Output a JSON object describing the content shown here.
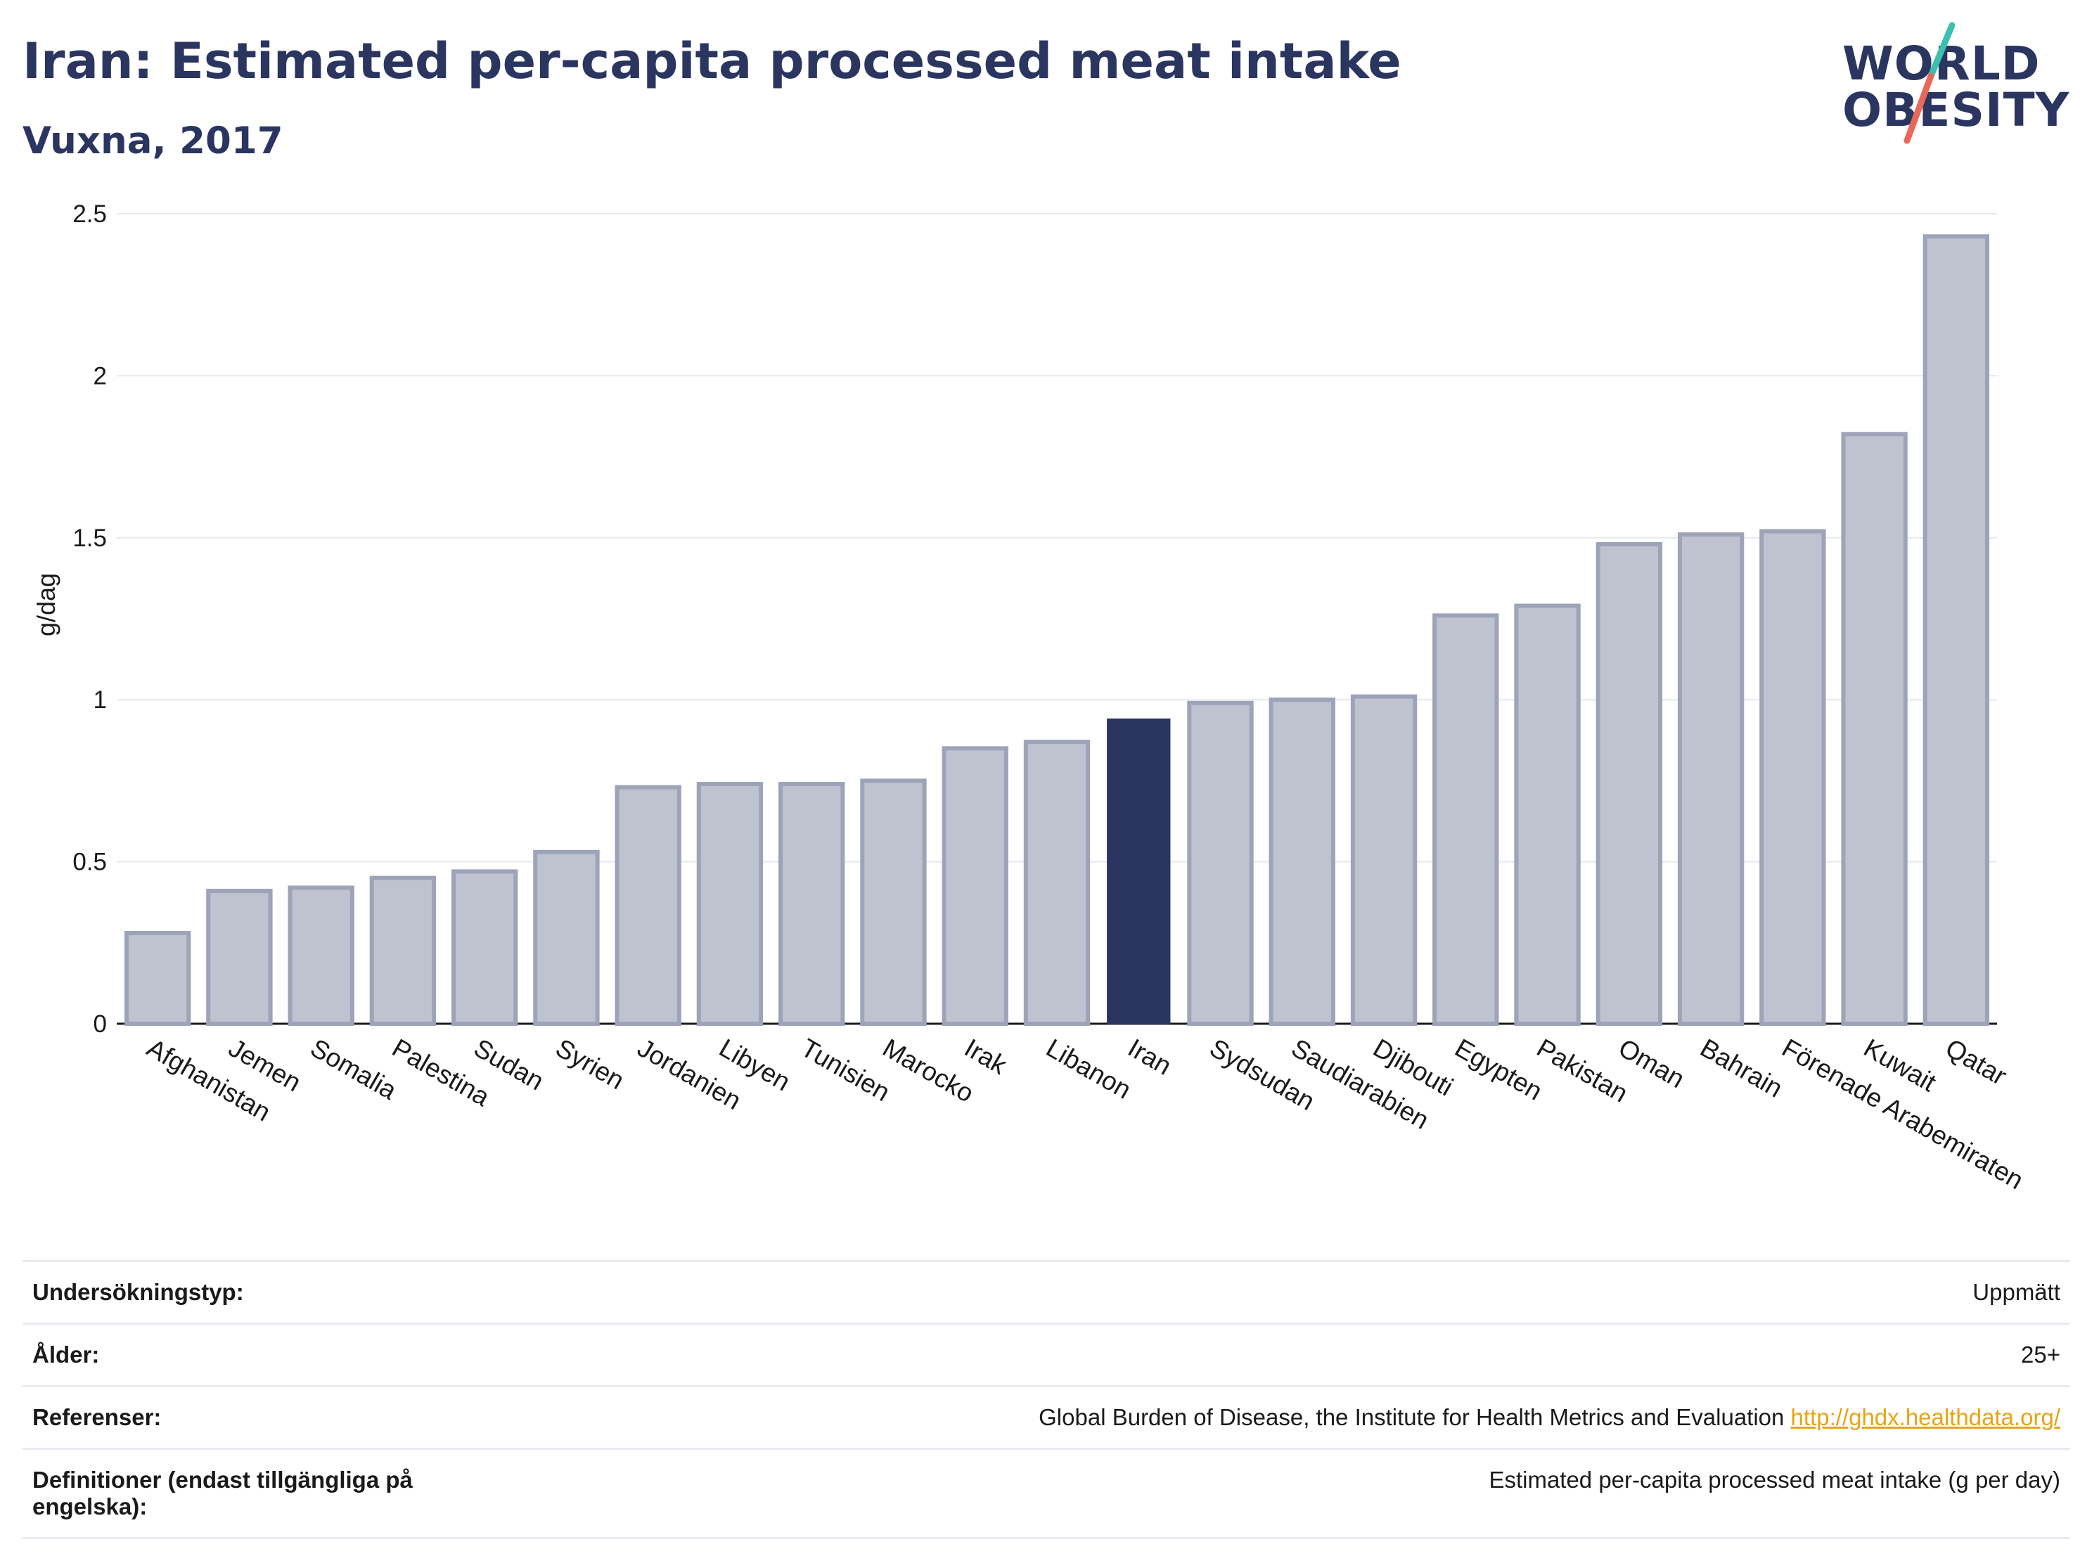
{
  "header": {
    "title": "Iran: Estimated per-capita processed meat intake",
    "subtitle": "Vuxna, 2017"
  },
  "logo": {
    "line1": "WORLD",
    "line2": "OBESITY",
    "slash_colors": [
      "#3cbfae",
      "#e8685a"
    ]
  },
  "colors": {
    "bar": "#bfc3d0",
    "bar_border": "#9da3b8",
    "highlight": "#2a3560",
    "grid": "#e6e8ee"
  },
  "chart_data": {
    "type": "bar",
    "title": "Iran: Estimated per-capita processed meat intake",
    "subtitle": "Vuxna, 2017",
    "ylabel": "g/dag",
    "ylim": [
      0,
      2.5
    ],
    "yticks": [
      "0",
      "0.5",
      "1",
      "1.5",
      "2",
      "2.5"
    ],
    "ytick_values": [
      0,
      0.5,
      1,
      1.5,
      2,
      2.5
    ],
    "highlight": "Iran",
    "categories": [
      "Afghanistan",
      "Jemen",
      "Somalia",
      "Palestina",
      "Sudan",
      "Syrien",
      "Jordanien",
      "Libyen",
      "Tunisien",
      "Marocko",
      "Irak",
      "Libanon",
      "Iran",
      "Sydsudan",
      "Saudiarabien",
      "Djibouti",
      "Egypten",
      "Pakistan",
      "Oman",
      "Bahrain",
      "Förenade Arabemiraten",
      "Kuwait",
      "Qatar"
    ],
    "values": [
      0.28,
      0.41,
      0.42,
      0.45,
      0.47,
      0.53,
      0.73,
      0.74,
      0.74,
      0.75,
      0.85,
      0.87,
      0.94,
      0.99,
      1.0,
      1.01,
      1.26,
      1.29,
      1.48,
      1.51,
      1.52,
      1.82,
      2.43
    ],
    "grid": true
  },
  "info": [
    {
      "label": "Undersökningstyp:",
      "value": "Uppmätt"
    },
    {
      "label": "Ålder:",
      "value": "25+"
    },
    {
      "label": "Referenser:",
      "value": "Global Burden of Disease, the Institute for Health Metrics and Evaluation",
      "link": "http://ghdx.healthdata.org/"
    },
    {
      "label": "Definitioner (endast tillgängliga på engelska):",
      "value": "Estimated per-capita processed meat intake (g per day)"
    }
  ]
}
